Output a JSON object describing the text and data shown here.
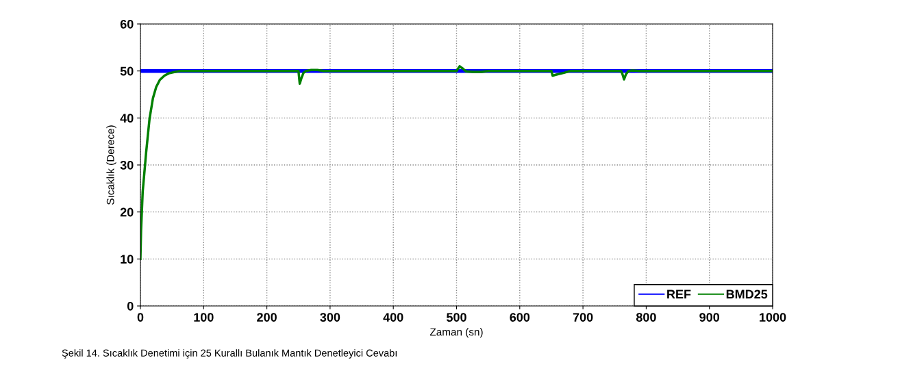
{
  "chart_data": {
    "type": "line",
    "xlabel": "Zaman (sn)",
    "ylabel": "Sıcaklık (Derece)",
    "xlim": [
      0,
      1000
    ],
    "ylim": [
      0,
      60
    ],
    "xticks": [
      0,
      100,
      200,
      300,
      400,
      500,
      600,
      700,
      800,
      900,
      1000
    ],
    "yticks": [
      0,
      10,
      20,
      30,
      40,
      50,
      60
    ],
    "grid": true,
    "legend": "bottom right",
    "line_style": "solid",
    "marker": "none",
    "series": [
      {
        "name": "REF",
        "color": "#0000ff",
        "x": [
          0,
          1000
        ],
        "values": [
          50,
          50
        ]
      },
      {
        "name": "BMD25",
        "color": "#008000",
        "x": [
          0,
          1,
          3.6,
          9,
          14.4,
          19.8,
          25,
          30.7,
          38,
          45,
          55,
          63,
          250,
          252,
          255,
          258,
          262,
          270,
          280,
          290,
          500,
          505,
          510,
          515,
          525,
          540,
          550,
          650,
          652,
          660,
          670,
          680,
          760,
          762,
          765,
          768,
          772,
          778,
          790,
          1000
        ],
        "values": [
          10,
          16,
          24.3,
          32.6,
          39.8,
          44.2,
          46.6,
          48.1,
          49.0,
          49.5,
          49.8,
          50,
          50,
          47.3,
          48.6,
          49.6,
          50,
          50.2,
          50.2,
          50,
          50,
          51,
          50.5,
          49.9,
          49.8,
          49.8,
          50,
          50,
          49,
          49.3,
          49.6,
          50,
          50,
          49.5,
          48.2,
          49.3,
          50,
          50.1,
          50,
          50
        ]
      }
    ],
    "annotations": [
      "Şekil 14. Sıcaklık Denetimi için 25 Kurallı Bulanık Mantık Denetleyici Cevabı"
    ]
  }
}
